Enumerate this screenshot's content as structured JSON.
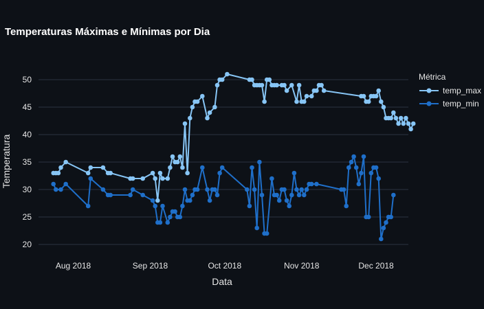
{
  "chart_data": {
    "type": "line",
    "title": "Temperaturas Máximas e Mínimas por Dia",
    "xlabel": "Data",
    "ylabel": "Temperatura",
    "x_range": [
      "2018-07-18",
      "2018-12-14"
    ],
    "ylim": [
      18.5,
      53
    ],
    "y_ticks": [
      20,
      25,
      30,
      35,
      40,
      45,
      50
    ],
    "x_ticks": [
      {
        "date": "2018-08-01",
        "label": "Aug 2018"
      },
      {
        "date": "2018-09-01",
        "label": "Sep 2018"
      },
      {
        "date": "2018-10-01",
        "label": "Oct 2018"
      },
      {
        "date": "2018-11-01",
        "label": "Nov 2018"
      },
      {
        "date": "2018-12-01",
        "label": "Dec 2018"
      }
    ],
    "grid": true,
    "legend": {
      "title": "Métrica",
      "position": "right"
    },
    "series": [
      {
        "name": "temp_max",
        "color": "#87c5f5",
        "points": [
          [
            "2018-07-24",
            33
          ],
          [
            "2018-07-25",
            33
          ],
          [
            "2018-07-26",
            33
          ],
          [
            "2018-07-27",
            34
          ],
          [
            "2018-07-29",
            35
          ],
          [
            "2018-08-07",
            33
          ],
          [
            "2018-08-08",
            34
          ],
          [
            "2018-08-13",
            34
          ],
          [
            "2018-08-15",
            33
          ],
          [
            "2018-08-16",
            33
          ],
          [
            "2018-08-24",
            32
          ],
          [
            "2018-08-25",
            32
          ],
          [
            "2018-08-29",
            32
          ],
          [
            "2018-09-02",
            33
          ],
          [
            "2018-09-03",
            32
          ],
          [
            "2018-09-04",
            28
          ],
          [
            "2018-09-05",
            33
          ],
          [
            "2018-09-06",
            32
          ],
          [
            "2018-09-08",
            32
          ],
          [
            "2018-09-09",
            34
          ],
          [
            "2018-09-10",
            36
          ],
          [
            "2018-09-11",
            35
          ],
          [
            "2018-09-12",
            35
          ],
          [
            "2018-09-13",
            36
          ],
          [
            "2018-09-14",
            34
          ],
          [
            "2018-09-15",
            42
          ],
          [
            "2018-09-16",
            33
          ],
          [
            "2018-09-17",
            43
          ],
          [
            "2018-09-18",
            45
          ],
          [
            "2018-09-19",
            46
          ],
          [
            "2018-09-20",
            46
          ],
          [
            "2018-09-22",
            47
          ],
          [
            "2018-09-24",
            43
          ],
          [
            "2018-09-25",
            44
          ],
          [
            "2018-09-27",
            45
          ],
          [
            "2018-09-28",
            49
          ],
          [
            "2018-09-29",
            50
          ],
          [
            "2018-09-30",
            50
          ],
          [
            "2018-10-02",
            51
          ],
          [
            "2018-10-11",
            50
          ],
          [
            "2018-10-12",
            50
          ],
          [
            "2018-10-13",
            49
          ],
          [
            "2018-10-14",
            49
          ],
          [
            "2018-10-15",
            49
          ],
          [
            "2018-10-16",
            49
          ],
          [
            "2018-10-17",
            46
          ],
          [
            "2018-10-18",
            50
          ],
          [
            "2018-10-19",
            50
          ],
          [
            "2018-10-20",
            49
          ],
          [
            "2018-10-21",
            49
          ],
          [
            "2018-10-22",
            49
          ],
          [
            "2018-10-24",
            49
          ],
          [
            "2018-10-25",
            49
          ],
          [
            "2018-10-26",
            48
          ],
          [
            "2018-10-28",
            49
          ],
          [
            "2018-10-30",
            46
          ],
          [
            "2018-10-31",
            49
          ],
          [
            "2018-11-01",
            46
          ],
          [
            "2018-11-02",
            46
          ],
          [
            "2018-11-03",
            47
          ],
          [
            "2018-11-05",
            47
          ],
          [
            "2018-11-06",
            48
          ],
          [
            "2018-11-07",
            48
          ],
          [
            "2018-11-08",
            49
          ],
          [
            "2018-11-09",
            49
          ],
          [
            "2018-11-10",
            48
          ],
          [
            "2018-11-25",
            47
          ],
          [
            "2018-11-26",
            47
          ],
          [
            "2018-11-27",
            46
          ],
          [
            "2018-11-28",
            46
          ],
          [
            "2018-11-29",
            47
          ],
          [
            "2018-11-30",
            47
          ],
          [
            "2018-12-01",
            47
          ],
          [
            "2018-12-02",
            48
          ],
          [
            "2018-12-03",
            46
          ],
          [
            "2018-12-04",
            45
          ],
          [
            "2018-12-05",
            43
          ],
          [
            "2018-12-06",
            43
          ],
          [
            "2018-12-07",
            43
          ],
          [
            "2018-12-08",
            44
          ],
          [
            "2018-12-09",
            43
          ],
          [
            "2018-12-10",
            42
          ],
          [
            "2018-12-11",
            43
          ],
          [
            "2018-12-12",
            42
          ],
          [
            "2018-12-13",
            43
          ],
          [
            "2018-12-14",
            42
          ],
          [
            "2018-12-15",
            41
          ],
          [
            "2018-12-16",
            42
          ]
        ]
      },
      {
        "name": "temp_min",
        "color": "#1f6fc9",
        "points": [
          [
            "2018-07-24",
            31
          ],
          [
            "2018-07-25",
            30
          ],
          [
            "2018-07-27",
            30
          ],
          [
            "2018-07-29",
            31
          ],
          [
            "2018-08-07",
            27
          ],
          [
            "2018-08-08",
            32
          ],
          [
            "2018-08-13",
            30
          ],
          [
            "2018-08-15",
            29
          ],
          [
            "2018-08-16",
            29
          ],
          [
            "2018-08-24",
            29
          ],
          [
            "2018-08-25",
            30
          ],
          [
            "2018-08-29",
            29
          ],
          [
            "2018-09-02",
            28
          ],
          [
            "2018-09-03",
            27
          ],
          [
            "2018-09-04",
            24
          ],
          [
            "2018-09-05",
            24
          ],
          [
            "2018-09-06",
            27
          ],
          [
            "2018-09-08",
            24
          ],
          [
            "2018-09-09",
            25
          ],
          [
            "2018-09-10",
            26
          ],
          [
            "2018-09-11",
            26
          ],
          [
            "2018-09-12",
            25
          ],
          [
            "2018-09-13",
            25
          ],
          [
            "2018-09-14",
            27
          ],
          [
            "2018-09-15",
            30
          ],
          [
            "2018-09-16",
            28
          ],
          [
            "2018-09-17",
            28
          ],
          [
            "2018-09-18",
            29
          ],
          [
            "2018-09-19",
            30
          ],
          [
            "2018-09-20",
            30
          ],
          [
            "2018-09-22",
            34
          ],
          [
            "2018-09-24",
            30
          ],
          [
            "2018-09-25",
            28
          ],
          [
            "2018-09-26",
            30
          ],
          [
            "2018-09-27",
            30
          ],
          [
            "2018-09-28",
            29
          ],
          [
            "2018-09-29",
            33
          ],
          [
            "2018-09-30",
            34
          ],
          [
            "2018-10-10",
            30
          ],
          [
            "2018-10-11",
            27
          ],
          [
            "2018-10-12",
            34
          ],
          [
            "2018-10-13",
            30
          ],
          [
            "2018-10-14",
            23
          ],
          [
            "2018-10-15",
            35
          ],
          [
            "2018-10-16",
            29
          ],
          [
            "2018-10-17",
            22
          ],
          [
            "2018-10-18",
            22
          ],
          [
            "2018-10-20",
            32
          ],
          [
            "2018-10-21",
            29
          ],
          [
            "2018-10-22",
            29
          ],
          [
            "2018-10-23",
            28
          ],
          [
            "2018-10-24",
            30
          ],
          [
            "2018-10-25",
            30
          ],
          [
            "2018-10-26",
            28
          ],
          [
            "2018-10-27",
            27
          ],
          [
            "2018-10-28",
            29
          ],
          [
            "2018-10-29",
            33
          ],
          [
            "2018-10-30",
            30
          ],
          [
            "2018-10-31",
            29
          ],
          [
            "2018-11-01",
            30
          ],
          [
            "2018-11-02",
            29
          ],
          [
            "2018-11-03",
            30
          ],
          [
            "2018-11-04",
            31
          ],
          [
            "2018-11-05",
            31
          ],
          [
            "2018-11-07",
            31
          ],
          [
            "2018-11-17",
            30
          ],
          [
            "2018-11-18",
            30
          ],
          [
            "2018-11-19",
            27
          ],
          [
            "2018-11-20",
            34
          ],
          [
            "2018-11-21",
            35
          ],
          [
            "2018-11-22",
            36
          ],
          [
            "2018-11-23",
            34
          ],
          [
            "2018-11-24",
            31
          ],
          [
            "2018-11-25",
            33
          ],
          [
            "2018-11-26",
            36
          ],
          [
            "2018-11-27",
            25
          ],
          [
            "2018-11-28",
            25
          ],
          [
            "2018-11-29",
            33
          ],
          [
            "2018-11-30",
            34
          ],
          [
            "2018-12-01",
            34
          ],
          [
            "2018-12-02",
            32
          ],
          [
            "2018-12-03",
            21
          ],
          [
            "2018-12-04",
            23
          ],
          [
            "2018-12-05",
            24
          ],
          [
            "2018-12-06",
            25
          ],
          [
            "2018-12-07",
            25
          ],
          [
            "2018-12-08",
            29
          ]
        ]
      }
    ]
  }
}
